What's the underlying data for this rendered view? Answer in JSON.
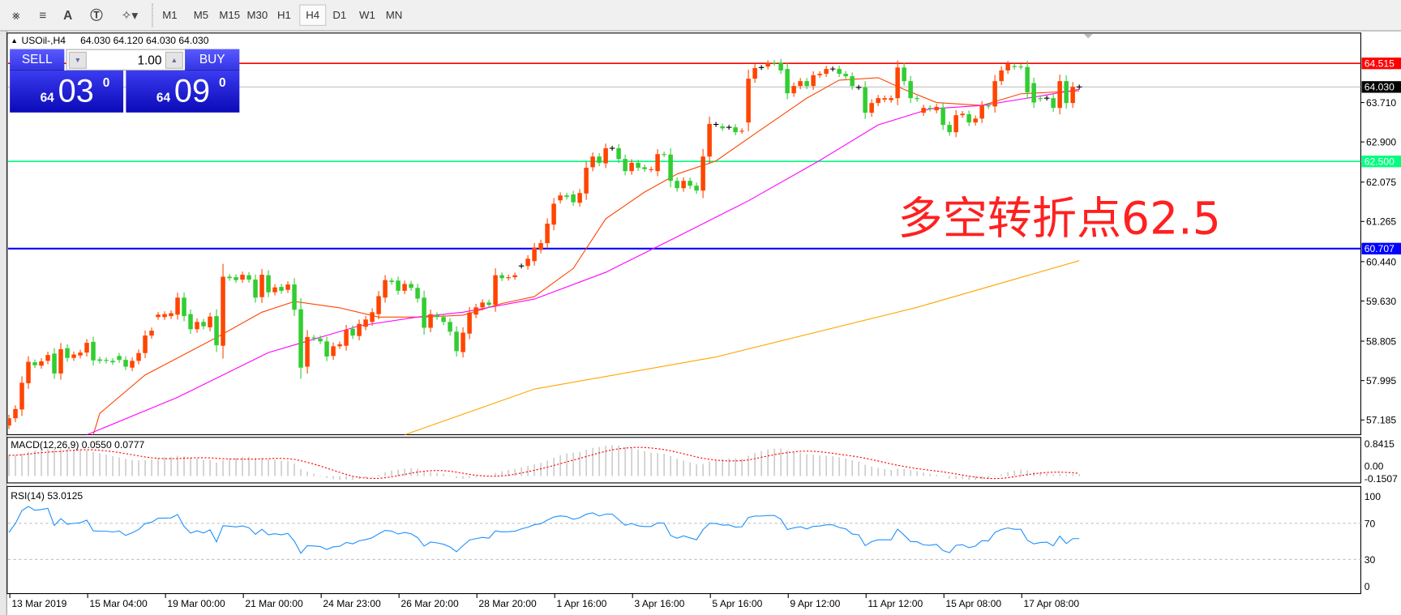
{
  "toolbar": {
    "icons": [
      "elliott-wave-icon",
      "fibonacci-icon",
      "text-icon",
      "text-label-icon",
      "arrows-icon"
    ],
    "timeframes": [
      "M1",
      "M5",
      "M15",
      "M30",
      "H1",
      "H4",
      "D1",
      "W1",
      "MN"
    ],
    "active_timeframe": "H4"
  },
  "chart_header": {
    "symbol": "USOil-,H4",
    "ohlc": "64.030 64.120 64.030 64.030"
  },
  "trade_panel": {
    "sell_label": "SELL",
    "buy_label": "BUY",
    "lot": "1.00",
    "sell_price": {
      "big": "64",
      "main": "03",
      "sup": "0"
    },
    "buy_price": {
      "big": "64",
      "main": "09",
      "sup": "0"
    }
  },
  "annotation": "多空转折点62.5",
  "colors": {
    "up": "#ff4500",
    "down": "#32cd32",
    "resistance": "#ff0000",
    "pivot": "#00ff7f",
    "support": "#0000ff",
    "ma_fast": "#ff4500",
    "ma_mid": "#ff00ff",
    "ma_slow": "#ffa500",
    "rsi": "#1e90ff",
    "macd_signal": "#ff0000",
    "macd_hist": "#c0c0c0"
  },
  "chart_data": {
    "type": "candlestick",
    "price_ticks": [
      "63.710",
      "62.900",
      "62.075",
      "61.265",
      "60.440",
      "59.630",
      "58.805",
      "57.995",
      "57.185"
    ],
    "levels": [
      {
        "price": 64.515,
        "label": "64.515",
        "color": "#ff0000"
      },
      {
        "price": 64.03,
        "label": "64.030",
        "color": "#000000"
      },
      {
        "price": 62.5,
        "label": "62.500",
        "color": "#00ff7f"
      },
      {
        "price": 60.707,
        "label": "60.707",
        "color": "#0000ff"
      }
    ],
    "x_ticks": [
      "13 Mar 2019",
      "15 Mar 04:00",
      "19 Mar 00:00",
      "21 Mar 00:00",
      "24 Mar 23:00",
      "26 Mar 20:00",
      "28 Mar 20:00",
      "1 Apr 16:00",
      "3 Apr 16:00",
      "5 Apr 16:00",
      "9 Apr 12:00",
      "11 Apr 12:00",
      "15 Apr 08:00",
      "17 Apr 08:00"
    ],
    "x_tick_every_bars": 12,
    "candles_open_close": [
      [
        57.07,
        57.22
      ],
      [
        57.22,
        57.41
      ],
      [
        57.4,
        57.95
      ],
      [
        57.94,
        58.38
      ],
      [
        58.37,
        58.31
      ],
      [
        58.3,
        58.39
      ],
      [
        58.4,
        58.52
      ],
      [
        58.55,
        58.14
      ],
      [
        58.14,
        58.64
      ],
      [
        58.66,
        58.46
      ],
      [
        58.46,
        58.53
      ],
      [
        58.51,
        58.57
      ],
      [
        58.57,
        58.77
      ],
      [
        58.79,
        58.41
      ],
      [
        58.43,
        58.4
      ],
      [
        58.42,
        58.4
      ],
      [
        58.4,
        58.37
      ],
      [
        58.5,
        58.42
      ],
      [
        58.42,
        58.28
      ],
      [
        58.26,
        58.4
      ],
      [
        58.4,
        58.56
      ],
      [
        58.56,
        58.92
      ],
      [
        58.92,
        59.02
      ],
      [
        59.3,
        59.35
      ],
      [
        59.3,
        59.36
      ],
      [
        59.32,
        59.38
      ],
      [
        59.35,
        59.7
      ],
      [
        59.7,
        59.32
      ],
      [
        59.36,
        59.05
      ],
      [
        59.05,
        59.2
      ],
      [
        59.2,
        59.11
      ],
      [
        59.09,
        59.31
      ],
      [
        59.32,
        58.72
      ],
      [
        58.71,
        60.13
      ],
      [
        60.13,
        60.1
      ],
      [
        60.12,
        60.06
      ],
      [
        60.07,
        60.17
      ],
      [
        60.16,
        60.07
      ],
      [
        60.07,
        59.7
      ],
      [
        59.71,
        60.17
      ],
      [
        60.16,
        59.81
      ],
      [
        59.81,
        59.91
      ],
      [
        59.92,
        59.84
      ],
      [
        59.86,
        59.97
      ],
      [
        59.97,
        59.45
      ],
      [
        59.46,
        58.26
      ],
      [
        58.28,
        58.89
      ],
      [
        58.88,
        58.86
      ],
      [
        58.86,
        58.8
      ],
      [
        58.8,
        58.49
      ],
      [
        58.5,
        58.7
      ],
      [
        58.7,
        58.74
      ],
      [
        58.71,
        59.04
      ],
      [
        59.06,
        58.92
      ],
      [
        58.91,
        59.16
      ],
      [
        59.1,
        59.25
      ],
      [
        59.2,
        59.4
      ],
      [
        59.36,
        59.73
      ],
      [
        59.7,
        60.06
      ],
      [
        60.05,
        60.02
      ],
      [
        60.05,
        59.84
      ],
      [
        59.84,
        59.98
      ],
      [
        59.98,
        59.9
      ],
      [
        59.9,
        59.68
      ],
      [
        59.7,
        59.08
      ],
      [
        59.08,
        59.36
      ],
      [
        59.34,
        59.3
      ],
      [
        59.3,
        59.2
      ],
      [
        59.2,
        59.0
      ],
      [
        59.0,
        58.6
      ],
      [
        58.58,
        58.98
      ],
      [
        58.96,
        59.39
      ],
      [
        59.35,
        59.5
      ],
      [
        59.5,
        59.6
      ],
      [
        59.6,
        59.55
      ],
      [
        59.55,
        60.16
      ],
      [
        60.16,
        60.1
      ],
      [
        60.1,
        60.12
      ],
      [
        60.12,
        60.16
      ],
      [
        60.35,
        60.35
      ],
      [
        60.35,
        60.5
      ],
      [
        60.45,
        60.73
      ],
      [
        60.68,
        60.82
      ],
      [
        60.82,
        61.22
      ],
      [
        61.2,
        61.63
      ],
      [
        61.7,
        61.8
      ],
      [
        61.8,
        61.77
      ],
      [
        61.82,
        61.66
      ],
      [
        61.65,
        61.85
      ],
      [
        61.84,
        62.37
      ],
      [
        62.38,
        62.6
      ],
      [
        62.6,
        62.47
      ],
      [
        62.46,
        62.77
      ],
      [
        62.77,
        62.77
      ],
      [
        62.77,
        62.55
      ],
      [
        62.55,
        62.3
      ],
      [
        62.3,
        62.47
      ],
      [
        62.47,
        62.37
      ],
      [
        62.38,
        62.34
      ],
      [
        62.33,
        62.34
      ],
      [
        62.3,
        62.65
      ],
      [
        62.65,
        62.64
      ],
      [
        62.64,
        62.1
      ],
      [
        62.1,
        61.95
      ],
      [
        61.95,
        62.1
      ],
      [
        62.1,
        62.0
      ],
      [
        62.0,
        61.9
      ],
      [
        61.9,
        62.6
      ],
      [
        62.6,
        63.27
      ],
      [
        63.26,
        63.26
      ],
      [
        63.22,
        63.18
      ],
      [
        63.2,
        63.2
      ],
      [
        63.2,
        63.1
      ],
      [
        63.12,
        63.13
      ],
      [
        63.3,
        64.2
      ],
      [
        64.2,
        64.42
      ],
      [
        64.43,
        64.43
      ],
      [
        64.45,
        64.52
      ],
      [
        64.53,
        64.52
      ],
      [
        64.53,
        64.37
      ],
      [
        64.4,
        63.9
      ],
      [
        63.9,
        64.05
      ],
      [
        64.05,
        64.15
      ],
      [
        64.15,
        64.05
      ],
      [
        64.05,
        64.27
      ],
      [
        64.27,
        64.3
      ],
      [
        64.3,
        64.4
      ],
      [
        64.4,
        64.4
      ],
      [
        64.4,
        64.3
      ],
      [
        64.3,
        64.25
      ],
      [
        64.25,
        64.05
      ],
      [
        64.02,
        64.02
      ],
      [
        64.02,
        63.5
      ],
      [
        63.5,
        63.7
      ],
      [
        63.7,
        63.8
      ],
      [
        63.77,
        63.8
      ],
      [
        63.76,
        63.8
      ],
      [
        63.8,
        64.43
      ],
      [
        64.43,
        64.15
      ],
      [
        64.15,
        63.8
      ],
      [
        63.8,
        63.78
      ],
      [
        63.5,
        63.6
      ],
      [
        63.6,
        63.58
      ],
      [
        63.55,
        63.62
      ],
      [
        63.6,
        63.25
      ],
      [
        63.25,
        63.1
      ],
      [
        63.1,
        63.45
      ],
      [
        63.45,
        63.48
      ],
      [
        63.47,
        63.3
      ],
      [
        63.3,
        63.38
      ],
      [
        63.38,
        63.65
      ],
      [
        63.65,
        63.63
      ],
      [
        63.63,
        64.15
      ],
      [
        64.15,
        64.37
      ],
      [
        64.37,
        64.5
      ],
      [
        64.46,
        64.44
      ],
      [
        64.45,
        64.44
      ],
      [
        64.44,
        63.92
      ],
      [
        64.11,
        63.71
      ],
      [
        63.8,
        63.78
      ],
      [
        63.8,
        63.8
      ],
      [
        63.8,
        63.6
      ],
      [
        63.6,
        64.15
      ],
      [
        64.15,
        63.7
      ],
      [
        63.7,
        64.03
      ],
      [
        64.03,
        64.03
      ]
    ],
    "moving_averages": [
      {
        "color": "#ff4500",
        "points": [
          [
            13,
            56.88
          ],
          [
            14,
            57.32
          ],
          [
            21,
            58.11
          ],
          [
            32,
            58.88
          ],
          [
            39,
            59.4
          ],
          [
            44,
            59.62
          ],
          [
            51,
            59.49
          ],
          [
            57,
            59.3
          ],
          [
            64,
            59.3
          ],
          [
            70,
            59.34
          ],
          [
            76,
            59.58
          ],
          [
            81,
            59.72
          ],
          [
            87,
            60.3
          ],
          [
            92,
            61.32
          ],
          [
            98,
            61.87
          ],
          [
            103,
            62.24
          ],
          [
            109,
            62.51
          ],
          [
            116,
            63.16
          ],
          [
            123,
            63.8
          ],
          [
            128,
            64.17
          ],
          [
            134,
            64.22
          ],
          [
            138,
            63.98
          ],
          [
            143,
            63.71
          ],
          [
            150,
            63.65
          ],
          [
            156,
            63.89
          ],
          [
            165,
            63.95
          ]
        ]
      },
      {
        "color": "#ff00ff",
        "points": [
          [
            12,
            56.88
          ],
          [
            26,
            57.65
          ],
          [
            40,
            58.57
          ],
          [
            54,
            59.12
          ],
          [
            63,
            59.3
          ],
          [
            70,
            59.4
          ],
          [
            81,
            59.67
          ],
          [
            92,
            60.22
          ],
          [
            103,
            60.95
          ],
          [
            114,
            61.69
          ],
          [
            125,
            62.52
          ],
          [
            134,
            63.25
          ],
          [
            142,
            63.58
          ],
          [
            150,
            63.65
          ],
          [
            157,
            63.8
          ],
          [
            165,
            63.98
          ]
        ]
      },
      {
        "color": "#ffa500",
        "points": [
          [
            61,
            56.88
          ],
          [
            81,
            57.82
          ],
          [
            109,
            58.48
          ],
          [
            140,
            59.5
          ],
          [
            165,
            60.46
          ]
        ]
      }
    ],
    "macd": {
      "label": "MACD(12,26,9) 0.0550 0.0777",
      "ticks": [
        "0.8415",
        "0.00",
        "-0.1507"
      ],
      "ylim": [
        -0.1507,
        0.8415
      ]
    },
    "rsi": {
      "label": "RSI(14) 53.0125",
      "ticks": [
        "100",
        "70",
        "30",
        "0"
      ],
      "levels": [
        70,
        30
      ],
      "ylim": [
        0,
        100
      ]
    }
  }
}
